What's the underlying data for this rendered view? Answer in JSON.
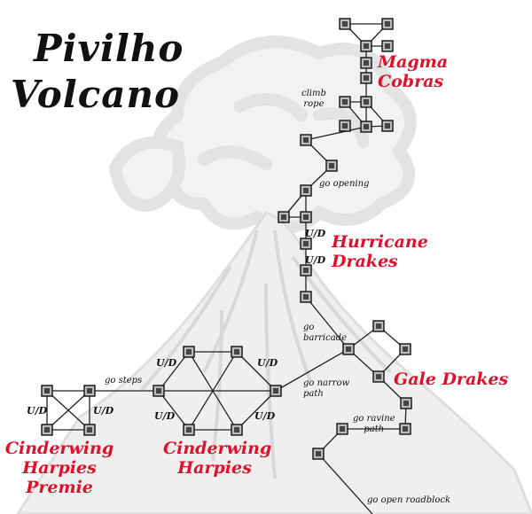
{
  "title": {
    "line1": "Pivilho",
    "line2": "Volcano"
  },
  "areas": {
    "magma_cobras": {
      "line1": "Magma",
      "line2": "Cobras"
    },
    "hurricane_drakes": {
      "line1": "Hurricane",
      "line2": "Drakes"
    },
    "gale_drakes": "Gale Drakes",
    "cinderwing_harpies": {
      "line1": "Cinderwing",
      "line2": "Harpies"
    },
    "cinderwing_harpies_premie": {
      "line1": "Cinderwing",
      "line2": "Harpies",
      "line3": "Premie"
    }
  },
  "exits": {
    "climb_rope": {
      "line1": "climb",
      "line2": "rope"
    },
    "go_opening": "go opening",
    "go_barricade": {
      "line1": "go",
      "line2": "barricade"
    },
    "go_narrow_path": {
      "line1": "go narrow",
      "line2": "path"
    },
    "go_ravine_path": {
      "line1": "go ravine",
      "line2": "path"
    },
    "go_steps": "go steps",
    "go_open_roadblock": "go open roadblock"
  },
  "ud_markers": {
    "hurricane_1": "U/D",
    "hurricane_2": "U/D",
    "hex_top_left": "U/D",
    "hex_top_right": "U/D",
    "hex_bottom_left": "U/D",
    "hex_bottom_right": "U/D",
    "premie_left": "U/D",
    "premie_right": "U/D"
  },
  "colors": {
    "area_label": "#e0102a",
    "title": "#111111",
    "room_fill": "#bbbbbb",
    "link": "#222222",
    "volcano_background": "#e6e6e6"
  },
  "icons": {
    "room": "room-square-icon",
    "background": "volcano-illustration"
  }
}
